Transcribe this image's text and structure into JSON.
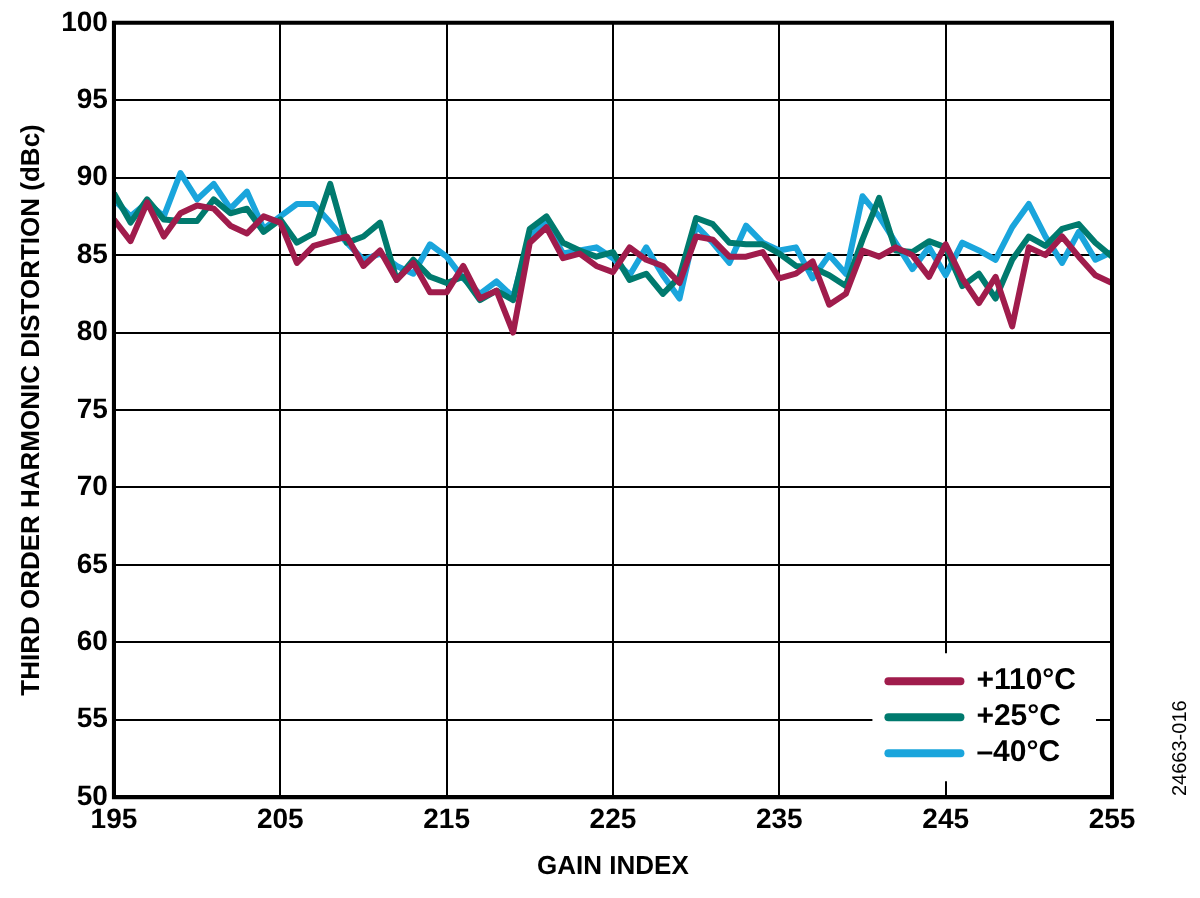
{
  "chart_data": {
    "type": "line",
    "xlabel": "GAIN INDEX",
    "ylabel": "THIRD ORDER HARMONIC DISTORTION (dBc)",
    "x": [
      195,
      196,
      197,
      198,
      199,
      200,
      201,
      202,
      203,
      204,
      205,
      206,
      207,
      208,
      209,
      210,
      211,
      212,
      213,
      214,
      215,
      216,
      217,
      218,
      219,
      220,
      221,
      222,
      223,
      224,
      225,
      226,
      227,
      228,
      229,
      230,
      231,
      232,
      233,
      234,
      235,
      236,
      237,
      238,
      239,
      240,
      241,
      242,
      243,
      244,
      245,
      246,
      247,
      248,
      249,
      250,
      251,
      252,
      253,
      254,
      255
    ],
    "series": [
      {
        "name": "+110°C",
        "color": "#a01c4c",
        "values": [
          87.3,
          85.9,
          88.4,
          86.2,
          87.7,
          88.2,
          88.0,
          86.9,
          86.4,
          87.5,
          87.1,
          84.5,
          85.6,
          85.9,
          86.2,
          84.3,
          85.3,
          83.4,
          84.5,
          82.6,
          82.6,
          84.3,
          82.2,
          82.7,
          80.0,
          85.8,
          86.8,
          84.8,
          85.1,
          84.3,
          83.9,
          85.5,
          84.7,
          84.3,
          83.2,
          86.2,
          86.0,
          84.9,
          84.9,
          85.2,
          83.5,
          83.8,
          84.6,
          81.8,
          82.5,
          85.3,
          84.9,
          85.5,
          85.0,
          83.6,
          85.7,
          83.5,
          81.9,
          83.6,
          80.4,
          85.5,
          85.0,
          86.2,
          84.9,
          83.7,
          83.2
        ]
      },
      {
        "name": "+25°C",
        "color": "#007a6e",
        "values": [
          89.0,
          87.1,
          88.6,
          87.3,
          87.2,
          87.2,
          88.6,
          87.7,
          88.0,
          86.5,
          87.3,
          85.8,
          86.4,
          89.6,
          85.8,
          86.2,
          87.1,
          83.4,
          84.7,
          83.6,
          83.2,
          83.6,
          82.1,
          82.7,
          82.1,
          86.7,
          87.5,
          85.8,
          85.3,
          84.9,
          85.2,
          83.4,
          83.8,
          82.5,
          83.6,
          87.4,
          87.0,
          85.8,
          85.7,
          85.7,
          85.1,
          84.3,
          84.2,
          83.7,
          83.0,
          86.0,
          88.7,
          85.3,
          85.2,
          85.9,
          85.5,
          83.0,
          83.8,
          82.2,
          84.7,
          86.2,
          85.6,
          86.7,
          87.0,
          85.8,
          84.9
        ]
      },
      {
        "name": "–40°C",
        "color": "#1aa5dc",
        "values": [
          88.6,
          87.5,
          88.4,
          87.5,
          90.3,
          88.6,
          89.6,
          88.0,
          89.1,
          86.7,
          87.5,
          88.3,
          88.3,
          87.1,
          85.8,
          84.7,
          85.1,
          84.3,
          83.8,
          85.7,
          84.9,
          83.5,
          82.5,
          83.3,
          82.3,
          86.2,
          87.1,
          85.1,
          85.3,
          85.5,
          84.8,
          83.7,
          85.5,
          83.7,
          82.2,
          86.9,
          85.8,
          84.5,
          86.9,
          85.8,
          85.3,
          85.5,
          83.5,
          85.0,
          83.8,
          88.8,
          87.5,
          85.8,
          84.1,
          85.5,
          83.7,
          85.8,
          85.3,
          84.7,
          86.8,
          88.3,
          86.2,
          84.5,
          86.5,
          84.7,
          85.2
        ]
      }
    ],
    "xlim": [
      195,
      255
    ],
    "xticks": [
      195,
      205,
      215,
      225,
      235,
      245,
      255
    ],
    "ylim": [
      50,
      100
    ],
    "yticks": [
      50,
      55,
      60,
      65,
      70,
      75,
      80,
      85,
      90,
      95,
      100
    ],
    "grid": true,
    "legend": "bottom right",
    "line_style": "solid",
    "marker": "none",
    "annotations": [
      "24663-016"
    ]
  }
}
